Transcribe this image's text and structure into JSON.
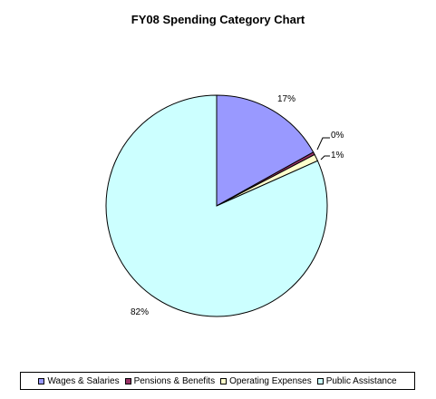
{
  "chart_data": {
    "type": "pie",
    "title": "FY08 Spending Category Chart",
    "categories": [
      "Wages & Salaries",
      "Pensions & Benefits",
      "Operating Expenses",
      "Public Assistance"
    ],
    "values": [
      17,
      0.4,
      1,
      82
    ],
    "labels": [
      "17%",
      "0%",
      "1%",
      "82%"
    ],
    "colors": [
      "#9999ff",
      "#993366",
      "#ffffcc",
      "#ccffff"
    ],
    "legend": "bottom"
  }
}
